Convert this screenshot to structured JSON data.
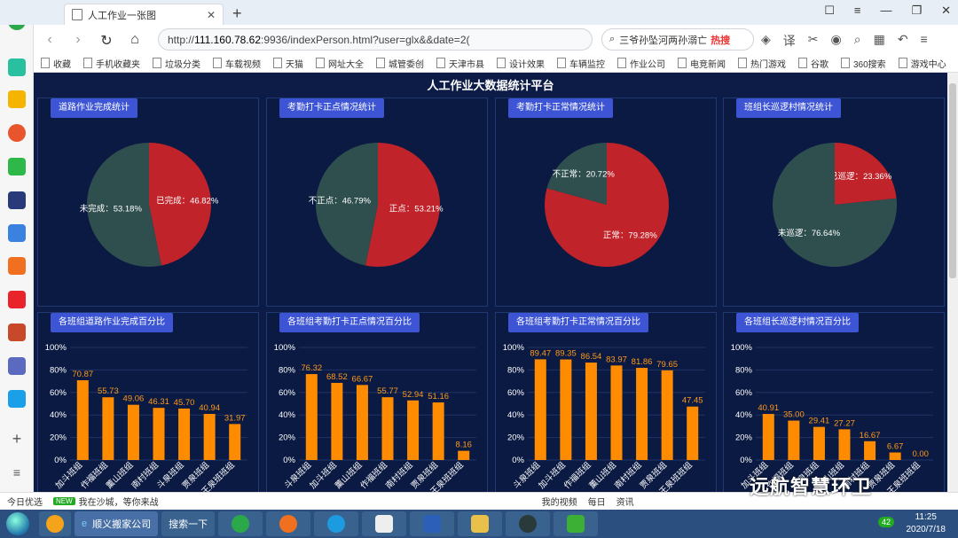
{
  "browser": {
    "tab_title": "人工作业一张图",
    "url_prefix": "http://",
    "url_domain": "111.160.78.62",
    "url_rest": ":9936/indexPerson.html?user=glx&&date=2(",
    "search_text": "三爷孙坠河两孙溺亡",
    "search_hot": "热搜",
    "bookmarks": [
      "收藏",
      "手机收藏夹",
      "垃圾分类",
      "车载视频",
      "天猫",
      "网址大全",
      "城管委创",
      "天津市县",
      "设计效果",
      "车辆监控",
      "作业公司",
      "电竞新闻",
      "热门游戏",
      "谷歌",
      "360搜索",
      "游戏中心"
    ]
  },
  "page": {
    "title": "人工作业大数据统计平台"
  },
  "pies": [
    {
      "tag": "道路作业完成统计",
      "slices": [
        {
          "label": "已完成：46.82%",
          "value": 46.82,
          "color": "#c0232a"
        },
        {
          "label": "未完成：53.18%",
          "value": 53.18,
          "color": "#2f4f4f"
        }
      ]
    },
    {
      "tag": "考勤打卡正点情况统计",
      "slices": [
        {
          "label": "正点：53.21%",
          "value": 53.21,
          "color": "#c0232a"
        },
        {
          "label": "不正点：46.79%",
          "value": 46.79,
          "color": "#2f4f4f"
        }
      ]
    },
    {
      "tag": "考勤打卡正常情况统计",
      "slices": [
        {
          "label": "正常：79.28%",
          "value": 79.28,
          "color": "#c0232a"
        },
        {
          "label": "不正常：20.72%",
          "value": 20.72,
          "color": "#2f4f4f"
        }
      ]
    },
    {
      "tag": "班组长巡逻村情况统计",
      "slices": [
        {
          "label": "已巡逻：23.36%",
          "value": 23.36,
          "color": "#c0232a"
        },
        {
          "label": "未巡逻：76.64%",
          "value": 76.64,
          "color": "#2f4f4f"
        }
      ]
    }
  ],
  "chart_data": [
    {
      "type": "bar",
      "title": "各班组道路作业完成百分比",
      "categories": [
        "加斗班组",
        "作福班组",
        "薰山班组",
        "南村班组",
        "斗泉班组",
        "贾泉班组",
        "王泉班班组"
      ],
      "values": [
        70.87,
        55.73,
        49.06,
        46.31,
        45.7,
        40.94,
        31.97
      ],
      "ylim": [
        0,
        100
      ],
      "yticks": [
        "0%",
        "20%",
        "40%",
        "60%",
        "80%",
        "100%"
      ],
      "value_labels": [
        "70.87",
        "55.73",
        "49.06",
        "46.31",
        "45.70",
        "40.94",
        "31.97"
      ],
      "color": "#ff8c00"
    },
    {
      "type": "bar",
      "title": "各班组考勤打卡正点情况百分比",
      "categories": [
        "斗泉班组",
        "加斗班组",
        "薰山班组",
        "作福班组",
        "南村班组",
        "贾泉班组",
        "王泉班班组"
      ],
      "values": [
        76.32,
        68.52,
        66.67,
        55.77,
        52.94,
        51.16,
        8.16
      ],
      "ylim": [
        0,
        100
      ],
      "yticks": [
        "0%",
        "20%",
        "40%",
        "60%",
        "80%",
        "100%"
      ],
      "value_labels": [
        "76.32",
        "68.52",
        "66.67",
        "55.77",
        "52.94",
        "51.16",
        "8.16"
      ],
      "color": "#ff8c00"
    },
    {
      "type": "bar",
      "title": "各班组考勤打卡正常情况百分比",
      "categories": [
        "斗泉班组",
        "加斗班组",
        "作福班组",
        "薰山班组",
        "南村班组",
        "贾泉班组",
        "王泉班班组"
      ],
      "values": [
        89.47,
        89.35,
        86.54,
        83.97,
        81.86,
        79.65,
        47.45
      ],
      "ylim": [
        0,
        100
      ],
      "yticks": [
        "0%",
        "20%",
        "40%",
        "60%",
        "80%",
        "100%"
      ],
      "value_labels": [
        "89.47",
        "89.35",
        "86.54",
        "83.97",
        "81.86",
        "79.65",
        "47.45"
      ],
      "color": "#ff8c00"
    },
    {
      "type": "bar",
      "title": "各班组长巡逻村情况百分比",
      "categories": [
        "加斗班组",
        "作福班组",
        "斗泉班组",
        "薰山班组",
        "南村班组",
        "贾泉班组",
        "王泉班班组"
      ],
      "values": [
        40.91,
        35.0,
        29.41,
        27.27,
        16.67,
        6.67,
        0.0
      ],
      "ylim": [
        0,
        100
      ],
      "yticks": [
        "0%",
        "20%",
        "40%",
        "60%",
        "80%",
        "100%"
      ],
      "value_labels": [
        "40.91",
        "35.00",
        "29.41",
        "27.27",
        "16.67",
        "6.67",
        "0.00"
      ],
      "color": "#ff8c00"
    }
  ],
  "statusbar": {
    "item1": "今日优选",
    "new_badge": "NEW",
    "item2": "我在沙城，等你来战",
    "right1": "我的视频",
    "right2": "每日",
    "right3": "资讯"
  },
  "taskbar": {
    "app": "顺义搬家公司",
    "search": "搜索一下",
    "time": "11:25",
    "date": "2020/7/18",
    "badge": "42"
  },
  "watermark": "远航智慧环卫"
}
